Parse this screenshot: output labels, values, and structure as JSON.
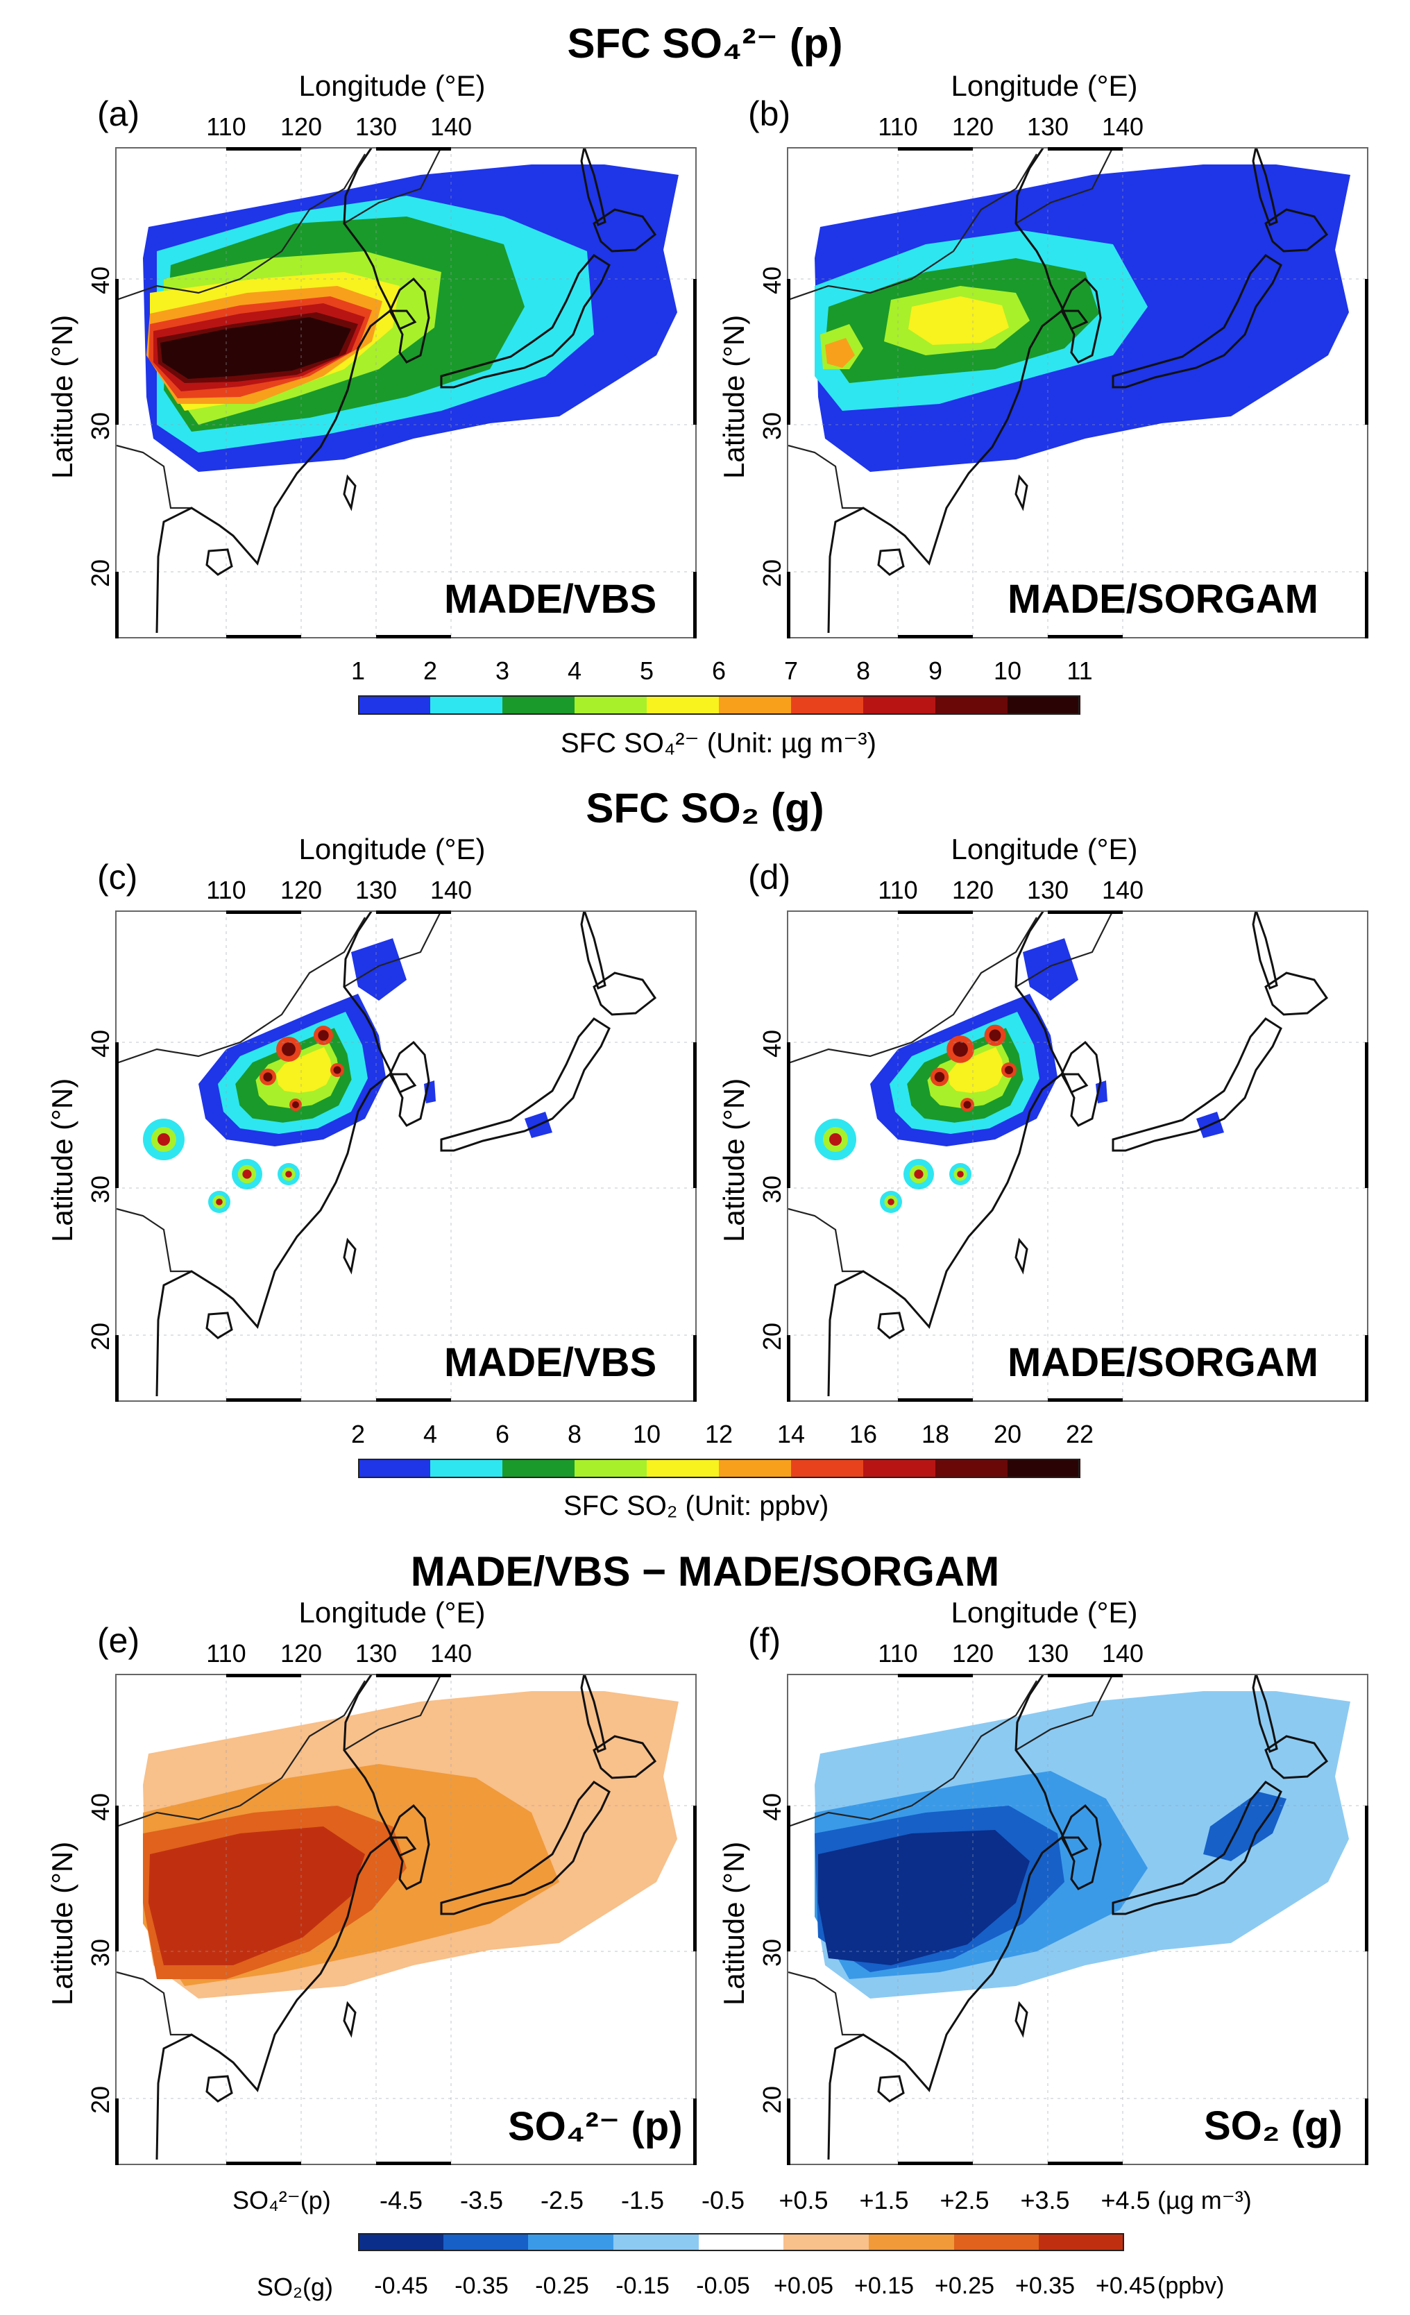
{
  "section_titles": {
    "so4": "SFC SO₄²⁻ (p)",
    "so2": "SFC SO₂ (g)",
    "diff": "MADE/VBS − MADE/SORGAM"
  },
  "axis": {
    "lon_title": "Longitude (°E)",
    "lat_title": "Latitude (°N)",
    "lon_ticks": [
      "110",
      "120",
      "130",
      "140"
    ],
    "lat_ticks": [
      "20",
      "30",
      "40"
    ]
  },
  "panels": [
    {
      "letter": "(a)",
      "label": "MADE/VBS"
    },
    {
      "letter": "(b)",
      "label": "MADE/SORGAM"
    },
    {
      "letter": "(c)",
      "label": "MADE/VBS"
    },
    {
      "letter": "(d)",
      "label": "MADE/SORGAM"
    },
    {
      "letter": "(e)",
      "label": "SO₄²⁻ (p)"
    },
    {
      "letter": "(f)",
      "label": "SO₂ (g)"
    }
  ],
  "colorbar_so4": {
    "ticks": [
      "1",
      "2",
      "3",
      "4",
      "5",
      "6",
      "7",
      "8",
      "9",
      "10",
      "11"
    ],
    "colors": [
      "#1f35e8",
      "#2ee6f0",
      "#1a9a2a",
      "#a8f02a",
      "#f8f21e",
      "#f8a01c",
      "#e8421c",
      "#b81414",
      "#6a0808",
      "#2a0404"
    ],
    "title": "SFC SO₄²⁻ (Unit: µg m⁻³)"
  },
  "colorbar_so2": {
    "ticks": [
      "2",
      "4",
      "6",
      "8",
      "10",
      "12",
      "14",
      "16",
      "18",
      "20",
      "22"
    ],
    "colors": [
      "#1f35e8",
      "#2ee6f0",
      "#1a9a2a",
      "#a8f02a",
      "#f8f21e",
      "#f8a01c",
      "#e8421c",
      "#b81414",
      "#6a0808",
      "#2a0404"
    ],
    "title": "SFC SO₂ (Unit: ppbv)"
  },
  "colorbar_diff": {
    "row1_label": "SO₄²⁻(p)",
    "row1_ticks": [
      "-4.5",
      "-3.5",
      "-2.5",
      "-1.5",
      "-0.5",
      "+0.5",
      "+1.5",
      "+2.5",
      "+3.5",
      "+4.5"
    ],
    "row1_unit": "(µg m⁻³)",
    "row2_label": "SO₂(g)",
    "row2_ticks": [
      "-0.45",
      "-0.35",
      "-0.25",
      "-0.15",
      "-0.05",
      "+0.05",
      "+0.15",
      "+0.25",
      "+0.35",
      "+0.45"
    ],
    "row2_unit": "(ppbv)",
    "colors": [
      "#0a2e8a",
      "#1660c8",
      "#3a9ae8",
      "#8ccaf2",
      "#ffffff",
      "#f8c08a",
      "#f09a3a",
      "#e0621c",
      "#c03010"
    ]
  }
}
